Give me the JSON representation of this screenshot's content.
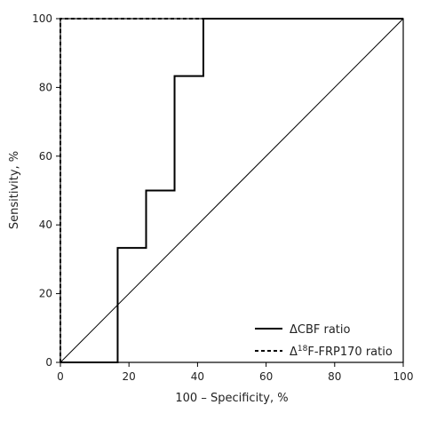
{
  "chart_data": {
    "type": "line",
    "xlabel": "100 – Specificity, %",
    "ylabel": "Sensitivity, %",
    "xlim": [
      0,
      100
    ],
    "ylim": [
      0,
      100
    ],
    "xticks": [
      0,
      20,
      40,
      60,
      80,
      100
    ],
    "yticks": [
      0,
      20,
      40,
      60,
      80,
      100
    ],
    "grid": false,
    "legend_position": "bottom-right",
    "reference_line": {
      "x": [
        0,
        100
      ],
      "y": [
        0,
        100
      ]
    },
    "series": [
      {
        "name": "ΔCBF ratio",
        "style": "solid",
        "color": "#000000",
        "x": [
          0,
          16.7,
          16.7,
          25,
          25,
          33.3,
          33.3,
          41.7,
          41.7,
          100
        ],
        "y": [
          0,
          0,
          33.3,
          33.3,
          50,
          50,
          83.3,
          83.3,
          100,
          100
        ]
      },
      {
        "name": "Δ18F-FRP170 ratio",
        "name_parts": {
          "prefix": "Δ",
          "sup": "18",
          "suffix": "F-FRP170 ratio"
        },
        "style": "dashed",
        "color": "#000000",
        "x": [
          0,
          0,
          100
        ],
        "y": [
          0,
          100,
          100
        ]
      }
    ]
  }
}
